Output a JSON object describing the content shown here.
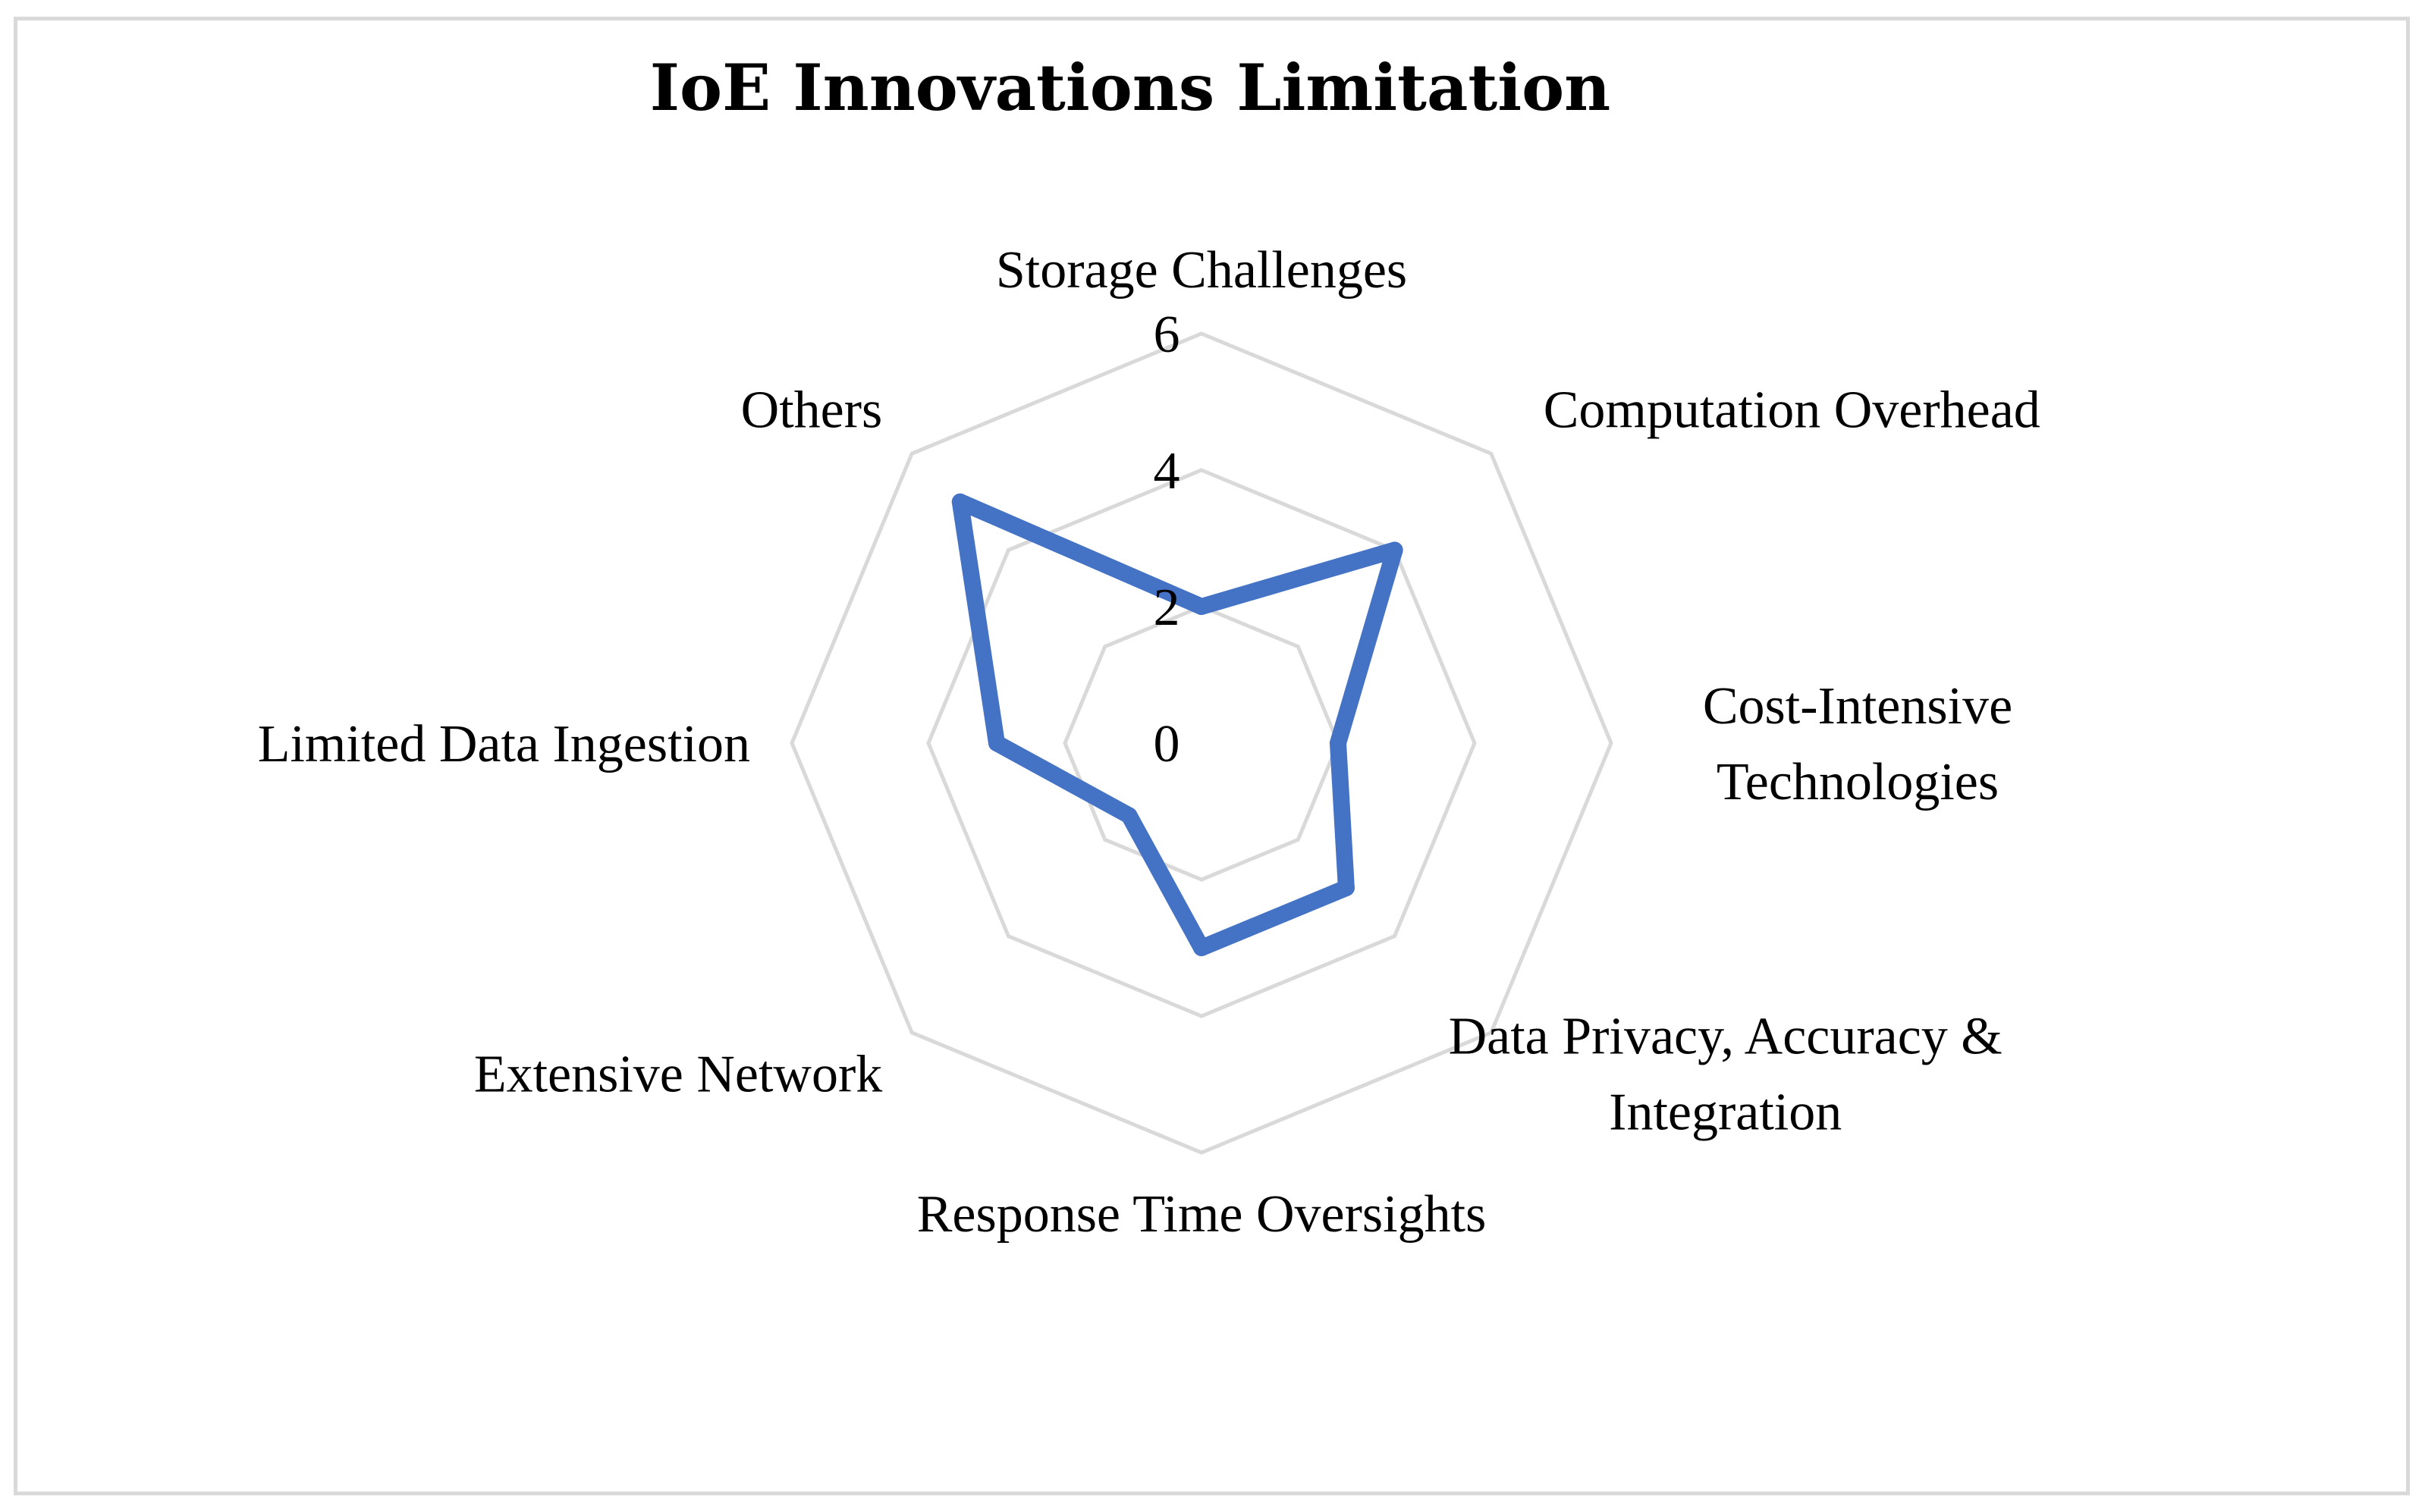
{
  "chart_data": {
    "type": "radar",
    "title": "IoE Innovations Limitation",
    "categories": [
      "Storage Challenges",
      "Computation Overhead",
      "Cost-Intensive Technologies",
      "Data Privacy, Accuracy & Integration",
      "Response Time Oversights",
      "Extensive Network",
      "Limited Data Ingestion",
      "Others"
    ],
    "category_lines": [
      [
        "Storage Challenges"
      ],
      [
        "Computation Overhead"
      ],
      [
        "Cost-Intensive",
        "Technologies"
      ],
      [
        "Data Privacy, Accuracy &",
        "Integration"
      ],
      [
        "Response Time Oversights"
      ],
      [
        "Extensive Network"
      ],
      [
        "Limited Data Ingestion"
      ],
      [
        "Others"
      ]
    ],
    "series": [
      {
        "values": [
          2,
          4,
          2,
          3,
          3,
          1.5,
          3,
          5
        ]
      }
    ],
    "rlim": [
      0,
      6
    ],
    "ticks": [
      0,
      2,
      4,
      6
    ],
    "tick_labels": [
      "0",
      "2",
      "4",
      "6"
    ],
    "grid": true,
    "legend": "none",
    "colors": {
      "series": "#4472c4",
      "grid": "#d9d9d9",
      "frame": "#d9d9d9",
      "text": "#000000"
    }
  }
}
